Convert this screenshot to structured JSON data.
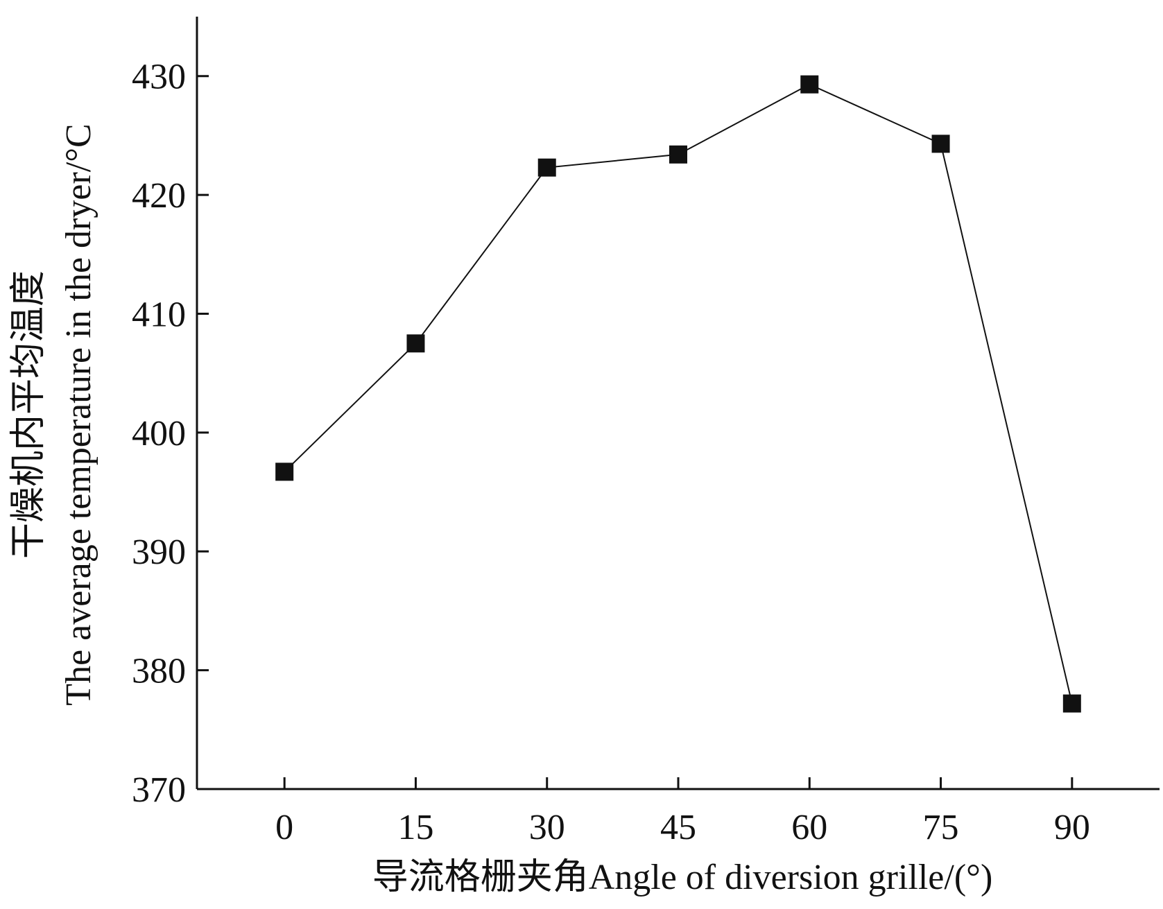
{
  "chart_data": {
    "type": "line",
    "title": "",
    "xlabel": "导流格栅夹角Angle of diversion grille/(°)",
    "ylabel_line1": "干燥机内平均温度",
    "ylabel_line2": "The average temperature in the dryer/°C",
    "x": [
      0,
      15,
      30,
      45,
      60,
      75,
      90
    ],
    "x_tick_labels": [
      "0",
      "15",
      "30",
      "45",
      "60",
      "75",
      "90"
    ],
    "y_ticks": [
      370,
      380,
      390,
      400,
      410,
      420,
      430
    ],
    "y_tick_labels": [
      "370",
      "380",
      "390",
      "400",
      "410",
      "420",
      "430"
    ],
    "ylim": [
      370,
      435
    ],
    "xlim": [
      -10,
      100
    ],
    "grid": false,
    "marker": "square",
    "series": [
      {
        "values": [
          396.7,
          407.5,
          422.3,
          423.4,
          429.3,
          424.3,
          377.2
        ]
      }
    ],
    "colors": {
      "line": "#111111",
      "marker": "#111111",
      "axis": "#111111"
    }
  }
}
